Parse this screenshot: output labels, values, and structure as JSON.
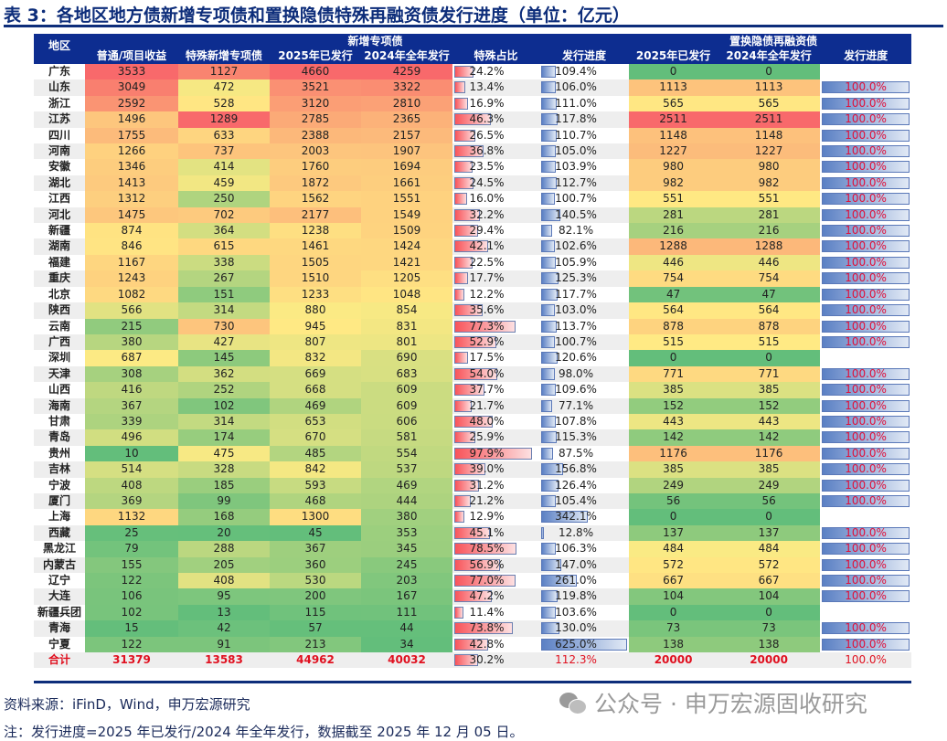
{
  "title": "表 3：各地区地方债新增专项债和置换隐债特殊再融资债发行进度（单位：亿元）",
  "header": {
    "region": "地区",
    "group_new": "新增专项债",
    "group_refi": "置换隐债再融资债",
    "cols": [
      "普通/项目收益",
      "特殊新增专项债",
      "2025年已发行",
      "2024年全年发行",
      "特殊占比",
      "发行进度",
      "2025年已发行",
      "2024年全年发行",
      "发行进度"
    ]
  },
  "rows": [
    {
      "region": "广东",
      "ordinary": "3533",
      "special": "1127",
      "issued2025": "4660",
      "full2024": "4259",
      "special_ratio": "24.2%",
      "progress": "109.4%",
      "refi2025": "0",
      "refi2024": "0",
      "refi_progress": ""
    },
    {
      "region": "山东",
      "ordinary": "3049",
      "special": "472",
      "issued2025": "3521",
      "full2024": "3322",
      "special_ratio": "13.4%",
      "progress": "106.0%",
      "refi2025": "1113",
      "refi2024": "1113",
      "refi_progress": "100.0%"
    },
    {
      "region": "浙江",
      "ordinary": "2592",
      "special": "528",
      "issued2025": "3120",
      "full2024": "2810",
      "special_ratio": "16.9%",
      "progress": "111.0%",
      "refi2025": "565",
      "refi2024": "565",
      "refi_progress": "100.0%"
    },
    {
      "region": "江苏",
      "ordinary": "1496",
      "special": "1289",
      "issued2025": "2785",
      "full2024": "2365",
      "special_ratio": "46.3%",
      "progress": "117.8%",
      "refi2025": "2511",
      "refi2024": "2511",
      "refi_progress": "100.0%"
    },
    {
      "region": "四川",
      "ordinary": "1755",
      "special": "633",
      "issued2025": "2388",
      "full2024": "2157",
      "special_ratio": "26.5%",
      "progress": "110.7%",
      "refi2025": "1148",
      "refi2024": "1148",
      "refi_progress": "100.0%"
    },
    {
      "region": "河南",
      "ordinary": "1266",
      "special": "737",
      "issued2025": "2003",
      "full2024": "1907",
      "special_ratio": "36.8%",
      "progress": "105.0%",
      "refi2025": "1227",
      "refi2024": "1227",
      "refi_progress": "100.0%"
    },
    {
      "region": "安徽",
      "ordinary": "1346",
      "special": "414",
      "issued2025": "1760",
      "full2024": "1694",
      "special_ratio": "23.5%",
      "progress": "103.9%",
      "refi2025": "980",
      "refi2024": "980",
      "refi_progress": "100.0%"
    },
    {
      "region": "湖北",
      "ordinary": "1413",
      "special": "459",
      "issued2025": "1872",
      "full2024": "1661",
      "special_ratio": "24.5%",
      "progress": "112.7%",
      "refi2025": "982",
      "refi2024": "982",
      "refi_progress": "100.0%"
    },
    {
      "region": "江西",
      "ordinary": "1312",
      "special": "250",
      "issued2025": "1562",
      "full2024": "1551",
      "special_ratio": "16.0%",
      "progress": "100.7%",
      "refi2025": "551",
      "refi2024": "551",
      "refi_progress": "100.0%"
    },
    {
      "region": "河北",
      "ordinary": "1475",
      "special": "702",
      "issued2025": "2177",
      "full2024": "1549",
      "special_ratio": "32.2%",
      "progress": "140.5%",
      "refi2025": "281",
      "refi2024": "281",
      "refi_progress": "100.0%"
    },
    {
      "region": "新疆",
      "ordinary": "874",
      "special": "364",
      "issued2025": "1238",
      "full2024": "1509",
      "special_ratio": "29.4%",
      "progress": "82.1%",
      "refi2025": "216",
      "refi2024": "216",
      "refi_progress": "100.0%"
    },
    {
      "region": "湖南",
      "ordinary": "846",
      "special": "615",
      "issued2025": "1461",
      "full2024": "1424",
      "special_ratio": "42.1%",
      "progress": "102.6%",
      "refi2025": "1288",
      "refi2024": "1288",
      "refi_progress": "100.0%"
    },
    {
      "region": "福建",
      "ordinary": "1167",
      "special": "338",
      "issued2025": "1505",
      "full2024": "1421",
      "special_ratio": "22.5%",
      "progress": "105.9%",
      "refi2025": "446",
      "refi2024": "446",
      "refi_progress": "100.0%"
    },
    {
      "region": "重庆",
      "ordinary": "1243",
      "special": "267",
      "issued2025": "1510",
      "full2024": "1205",
      "special_ratio": "17.7%",
      "progress": "125.3%",
      "refi2025": "754",
      "refi2024": "754",
      "refi_progress": "100.0%"
    },
    {
      "region": "北京",
      "ordinary": "1082",
      "special": "151",
      "issued2025": "1233",
      "full2024": "1048",
      "special_ratio": "12.2%",
      "progress": "117.7%",
      "refi2025": "47",
      "refi2024": "47",
      "refi_progress": "100.0%"
    },
    {
      "region": "陕西",
      "ordinary": "566",
      "special": "314",
      "issued2025": "880",
      "full2024": "854",
      "special_ratio": "35.6%",
      "progress": "103.0%",
      "refi2025": "564",
      "refi2024": "564",
      "refi_progress": "100.0%"
    },
    {
      "region": "云南",
      "ordinary": "215",
      "special": "730",
      "issued2025": "945",
      "full2024": "831",
      "special_ratio": "77.3%",
      "progress": "113.7%",
      "refi2025": "878",
      "refi2024": "878",
      "refi_progress": "100.0%"
    },
    {
      "region": "广西",
      "ordinary": "380",
      "special": "427",
      "issued2025": "807",
      "full2024": "801",
      "special_ratio": "52.9%",
      "progress": "100.7%",
      "refi2025": "515",
      "refi2024": "515",
      "refi_progress": "100.0%"
    },
    {
      "region": "深圳",
      "ordinary": "687",
      "special": "145",
      "issued2025": "832",
      "full2024": "690",
      "special_ratio": "17.5%",
      "progress": "120.6%",
      "refi2025": "0",
      "refi2024": "0",
      "refi_progress": ""
    },
    {
      "region": "天津",
      "ordinary": "308",
      "special": "362",
      "issued2025": "669",
      "full2024": "683",
      "special_ratio": "54.0%",
      "progress": "98.0%",
      "refi2025": "771",
      "refi2024": "771",
      "refi_progress": "100.0%"
    },
    {
      "region": "山西",
      "ordinary": "416",
      "special": "252",
      "issued2025": "668",
      "full2024": "609",
      "special_ratio": "37.7%",
      "progress": "109.6%",
      "refi2025": "385",
      "refi2024": "385",
      "refi_progress": "100.0%"
    },
    {
      "region": "海南",
      "ordinary": "367",
      "special": "102",
      "issued2025": "469",
      "full2024": "609",
      "special_ratio": "21.7%",
      "progress": "77.1%",
      "refi2025": "152",
      "refi2024": "152",
      "refi_progress": "100.0%"
    },
    {
      "region": "甘肃",
      "ordinary": "339",
      "special": "314",
      "issued2025": "653",
      "full2024": "606",
      "special_ratio": "48.0%",
      "progress": "107.8%",
      "refi2025": "443",
      "refi2024": "443",
      "refi_progress": "100.0%"
    },
    {
      "region": "青岛",
      "ordinary": "496",
      "special": "174",
      "issued2025": "670",
      "full2024": "581",
      "special_ratio": "25.9%",
      "progress": "115.3%",
      "refi2025": "142",
      "refi2024": "142",
      "refi_progress": "100.0%"
    },
    {
      "region": "贵州",
      "ordinary": "10",
      "special": "475",
      "issued2025": "485",
      "full2024": "554",
      "special_ratio": "97.9%",
      "progress": "87.5%",
      "refi2025": "1176",
      "refi2024": "1176",
      "refi_progress": "100.0%"
    },
    {
      "region": "吉林",
      "ordinary": "514",
      "special": "328",
      "issued2025": "842",
      "full2024": "537",
      "special_ratio": "39.0%",
      "progress": "156.8%",
      "refi2025": "385",
      "refi2024": "385",
      "refi_progress": "100.0%"
    },
    {
      "region": "宁波",
      "ordinary": "408",
      "special": "185",
      "issued2025": "593",
      "full2024": "469",
      "special_ratio": "31.2%",
      "progress": "126.4%",
      "refi2025": "249",
      "refi2024": "249",
      "refi_progress": "100.0%"
    },
    {
      "region": "厦门",
      "ordinary": "369",
      "special": "99",
      "issued2025": "468",
      "full2024": "444",
      "special_ratio": "21.2%",
      "progress": "105.4%",
      "refi2025": "56",
      "refi2024": "56",
      "refi_progress": "100.0%"
    },
    {
      "region": "上海",
      "ordinary": "1132",
      "special": "168",
      "issued2025": "1300",
      "full2024": "380",
      "special_ratio": "12.9%",
      "progress": "342.1%",
      "refi2025": "0",
      "refi2024": "0",
      "refi_progress": ""
    },
    {
      "region": "西藏",
      "ordinary": "25",
      "special": "20",
      "issued2025": "45",
      "full2024": "353",
      "special_ratio": "45.1%",
      "progress": "12.8%",
      "refi2025": "137",
      "refi2024": "137",
      "refi_progress": "100.0%"
    },
    {
      "region": "黑龙江",
      "ordinary": "79",
      "special": "288",
      "issued2025": "367",
      "full2024": "345",
      "special_ratio": "78.5%",
      "progress": "106.3%",
      "refi2025": "484",
      "refi2024": "484",
      "refi_progress": "100.0%"
    },
    {
      "region": "内蒙古",
      "ordinary": "155",
      "special": "205",
      "issued2025": "360",
      "full2024": "245",
      "special_ratio": "56.9%",
      "progress": "147.0%",
      "refi2025": "572",
      "refi2024": "572",
      "refi_progress": "100.0%"
    },
    {
      "region": "辽宁",
      "ordinary": "122",
      "special": "408",
      "issued2025": "530",
      "full2024": "203",
      "special_ratio": "77.0%",
      "progress": "261.0%",
      "refi2025": "667",
      "refi2024": "667",
      "refi_progress": "100.0%"
    },
    {
      "region": "大连",
      "ordinary": "106",
      "special": "95",
      "issued2025": "200",
      "full2024": "167",
      "special_ratio": "47.2%",
      "progress": "119.8%",
      "refi2025": "104",
      "refi2024": "104",
      "refi_progress": "100.0%"
    },
    {
      "region": "新疆兵团",
      "ordinary": "102",
      "special": "13",
      "issued2025": "115",
      "full2024": "111",
      "special_ratio": "11.4%",
      "progress": "103.6%",
      "refi2025": "0",
      "refi2024": "0",
      "refi_progress": ""
    },
    {
      "region": "青海",
      "ordinary": "15",
      "special": "42",
      "issued2025": "57",
      "full2024": "44",
      "special_ratio": "73.8%",
      "progress": "130.0%",
      "refi2025": "73",
      "refi2024": "73",
      "refi_progress": "100.0%"
    },
    {
      "region": "宁夏",
      "ordinary": "122",
      "special": "91",
      "issued2025": "213",
      "full2024": "34",
      "special_ratio": "42.8%",
      "progress": "625.0%",
      "refi2025": "138",
      "refi2024": "138",
      "refi_progress": "100.0%"
    }
  ],
  "total": {
    "region": "合计",
    "ordinary": "31379",
    "special": "13583",
    "issued2025": "44962",
    "full2024": "40032",
    "special_ratio": "30.2%",
    "progress": "112.3%",
    "refi2025": "20000",
    "refi2024": "20000",
    "refi_progress": "100.0%"
  },
  "footer": {
    "source": "资料来源：iFinD，Wind，申万宏源研究",
    "note": "注：发行进度=2025 年已发行/2024 年全年发行，数据截至 2025 年 12 月 05 日。",
    "watermark": "公众号 · 申万宏源固收研究"
  },
  "colors": {
    "header_bg": "#0d2d90",
    "title": "#0d2d7a",
    "heat_low": "#63be7b",
    "heat_mid": "#ffeb84",
    "heat_high": "#f8696b",
    "total_text": "#e0101f"
  }
}
